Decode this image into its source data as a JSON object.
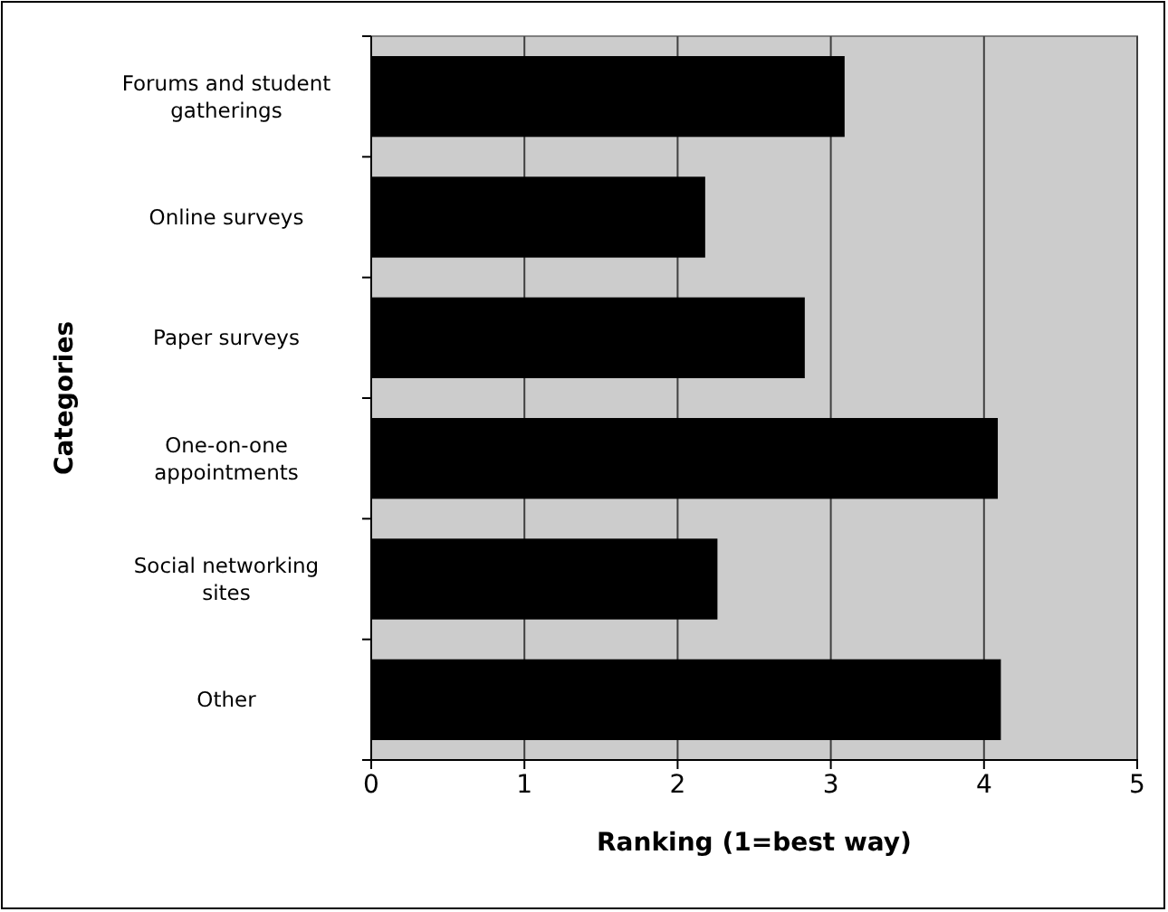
{
  "chart_data": {
    "type": "bar",
    "orientation": "horizontal",
    "xlabel": "Ranking (1=best way)",
    "ylabel": "Categories",
    "categories": [
      "Forums and student gatherings",
      "Online surveys",
      "Paper surveys",
      "One-on-one appointments",
      "Social networking sites",
      "Other"
    ],
    "values": [
      3.09,
      2.18,
      2.83,
      4.09,
      2.26,
      4.11
    ],
    "color": "#000000",
    "xlim": [
      0,
      5
    ],
    "xticks": [
      0,
      1,
      2,
      3,
      4,
      5
    ],
    "grid": "x"
  }
}
